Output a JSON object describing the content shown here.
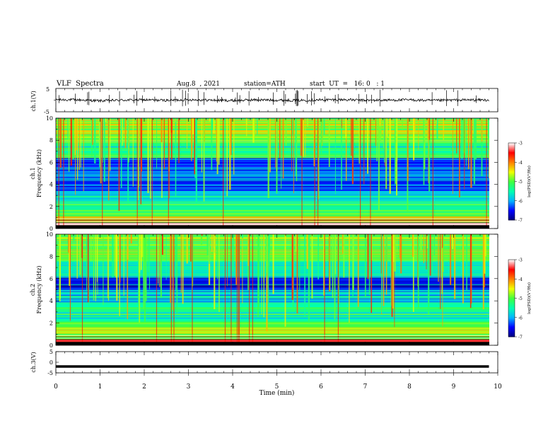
{
  "header": {
    "title": "VLF  Spectra",
    "date": "Aug.8  , 2021",
    "station": "station=ATH",
    "start_ut": "start  UT  =   16: 0   : 1"
  },
  "chart_data": [
    {
      "type": "line",
      "panel": "ch1-waveform",
      "ylabel": "ch.1(V)",
      "y_ticks": [
        "5",
        "-5"
      ],
      "ylim": [
        -5,
        5
      ],
      "x": [
        0,
        0.5,
        1,
        1.5,
        2,
        2.5,
        3,
        3.5,
        4,
        4.5,
        5,
        5.5,
        6,
        6.5,
        7,
        7.5,
        8,
        8.5,
        9,
        9.5,
        9.8
      ],
      "values": [
        0.2,
        0.1,
        -0.3,
        0.0,
        0.1,
        -0.1,
        0.2,
        0.0,
        -0.2,
        0.1,
        0.0,
        -0.1,
        0.1,
        0.2,
        -0.1,
        0.0,
        0.1,
        -0.2,
        0.0,
        0.1,
        0.0
      ]
    },
    {
      "type": "heatmap",
      "panel": "ch1-spectrogram",
      "ylabel_top": "ch.1",
      "ylabel": "Frequency  (kHz)",
      "y_ticks": [
        "0",
        "2",
        "4",
        "6",
        "8",
        "10"
      ],
      "ylim": [
        0,
        10
      ],
      "xlim": [
        0,
        10
      ],
      "colorbar": {
        "label": "log(PSD)(V²/Hz)",
        "ticks": [
          "-3",
          "-4",
          "-5",
          "-6",
          "-7"
        ],
        "range": [
          -7,
          -3
        ]
      },
      "bands_khz": [
        {
          "from": 0.0,
          "to": 0.6,
          "log_psd": -3.2
        },
        {
          "from": 0.6,
          "to": 1.2,
          "log_psd": -4.6
        },
        {
          "from": 1.2,
          "to": 2.6,
          "log_psd": -5.3
        },
        {
          "from": 2.6,
          "to": 3.4,
          "log_psd": -5.8
        },
        {
          "from": 3.4,
          "to": 4.6,
          "log_psd": -6.4
        },
        {
          "from": 4.6,
          "to": 5.6,
          "log_psd": -6.2
        },
        {
          "from": 5.6,
          "to": 6.4,
          "log_psd": -6.5
        },
        {
          "from": 6.4,
          "to": 8.0,
          "log_psd": -5.4
        },
        {
          "from": 8.0,
          "to": 10.0,
          "log_psd": -4.9
        }
      ]
    },
    {
      "type": "heatmap",
      "panel": "ch2-spectrogram",
      "ylabel_top": "ch.2",
      "ylabel": "Frequency  (kHz)",
      "y_ticks": [
        "0",
        "2",
        "4",
        "6",
        "8",
        "10"
      ],
      "ylim": [
        0,
        10
      ],
      "xlim": [
        0,
        10
      ],
      "colorbar": {
        "label": "log(PSD)(V²/Hz)",
        "ticks": [
          "-3",
          "-4",
          "-5",
          "-6",
          "-7"
        ],
        "range": [
          -7,
          -3
        ]
      },
      "bands_khz": [
        {
          "from": 0.0,
          "to": 0.6,
          "log_psd": -3.4
        },
        {
          "from": 0.6,
          "to": 2.2,
          "log_psd": -5.0
        },
        {
          "from": 2.2,
          "to": 3.8,
          "log_psd": -5.5
        },
        {
          "from": 3.8,
          "to": 5.0,
          "log_psd": -5.9
        },
        {
          "from": 5.0,
          "to": 6.2,
          "log_psd": -6.4
        },
        {
          "from": 6.2,
          "to": 7.6,
          "log_psd": -5.6
        },
        {
          "from": 7.6,
          "to": 10.0,
          "log_psd": -4.9
        }
      ]
    },
    {
      "type": "line",
      "panel": "ch3-waveform",
      "ylabel": "ch.3(V)",
      "y_ticks": [
        "5",
        "0",
        "-5"
      ],
      "ylim": [
        -5,
        5
      ],
      "x": [
        0,
        9.8
      ],
      "values": [
        -2,
        -2
      ]
    }
  ],
  "x_axis": {
    "label": "Time  (min)",
    "ticks": [
      "0",
      "1",
      "2",
      "3",
      "4",
      "5",
      "6",
      "7",
      "8",
      "9",
      "10"
    ],
    "xlim": [
      0,
      10
    ]
  },
  "colors": {
    "axis": "#000000",
    "waveform": "#000000",
    "colormap": [
      "#00007a",
      "#0000ff",
      "#00b4ff",
      "#00ffb0",
      "#40ff40",
      "#f0ff00",
      "#ff8000",
      "#ff0000",
      "#ffffff"
    ]
  }
}
